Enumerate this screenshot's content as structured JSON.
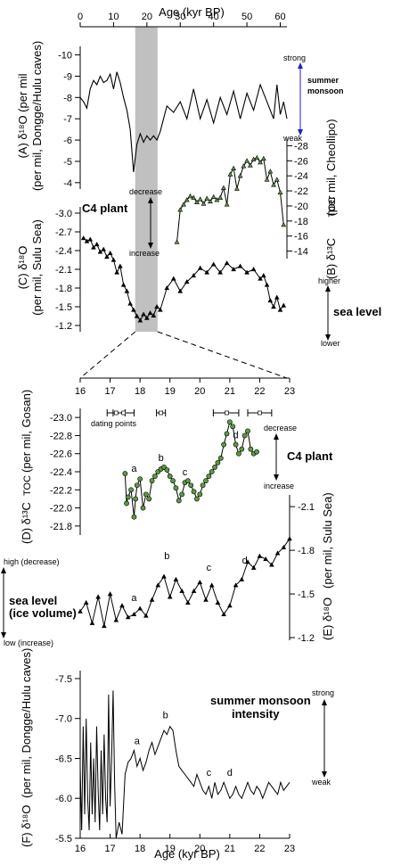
{
  "colors": {
    "red": "#e8333c",
    "blue": "#1f1fbf",
    "green": "#2e7d32",
    "shade": "#c0c0c0",
    "marker_green": "#5c9a42"
  },
  "chart_data": [
    {
      "id": "A",
      "type": "line",
      "xlabel": "Age (kyr BP)",
      "ylabel": "(A) δ18O (per mil, Dongge/Hulu caves)",
      "xlim": [
        0,
        62
      ],
      "xticks": [
        0,
        10,
        20,
        30,
        40,
        50,
        60
      ],
      "ylim": [
        -3.7,
        -10.4
      ],
      "yticks": [
        -10,
        -9,
        -8,
        -7,
        -6,
        -5,
        -4
      ],
      "series": [
        {
          "x": [
            0,
            1,
            2,
            3,
            4,
            5,
            6,
            7,
            8,
            9,
            10,
            11,
            12,
            13,
            14,
            15,
            16,
            17,
            18,
            19,
            20,
            21,
            22,
            23,
            24,
            26,
            28,
            30,
            32,
            34,
            36,
            38,
            40,
            42,
            44,
            46,
            48,
            50,
            52,
            54,
            56,
            58,
            59,
            60,
            61,
            62
          ],
          "y": [
            -8.0,
            -7.8,
            -7.5,
            -8.4,
            -8.8,
            -8.6,
            -9.0,
            -8.7,
            -8.8,
            -9.1,
            -8.4,
            -9.2,
            -8.7,
            -8.0,
            -7.4,
            -6.5,
            -4.5,
            -5.8,
            -6.3,
            -5.9,
            -6.2,
            -6.0,
            -6.2,
            -6.0,
            -6.4,
            -7.6,
            -7.3,
            -7.8,
            -7.0,
            -8.4,
            -7.0,
            -7.9,
            -6.8,
            -8.0,
            -7.2,
            -8.3,
            -7.0,
            -8.2,
            -7.4,
            -8.6,
            -7.8,
            -7.0,
            -8.6,
            -7.2,
            -7.8,
            -7.0
          ]
        }
      ],
      "annotations": {
        "top": "strong",
        "bottom": "weak",
        "label": [
          "summer",
          "monsoon"
        ]
      }
    },
    {
      "id": "B",
      "type": "line",
      "ylabel": "(B) δ13C TOC (per mil, Cheollipo)",
      "ylim": [
        -13,
        -29
      ],
      "yticks": [
        -28,
        -26,
        -24,
        -22,
        -20,
        -18,
        -16,
        -14
      ],
      "series": [
        {
          "x": [
            29,
            30,
            31,
            32,
            33,
            34,
            35,
            36,
            37,
            38,
            39,
            40,
            41,
            42,
            43,
            44,
            45,
            46,
            47,
            48,
            49,
            50,
            51,
            52,
            53,
            54,
            55,
            56,
            57,
            58,
            59,
            60,
            61
          ],
          "y": [
            -15.2,
            -19.5,
            -20.2,
            -20.8,
            -21.3,
            -21.1,
            -20.5,
            -20.9,
            -20.3,
            -21.0,
            -20.6,
            -21.2,
            -20.8,
            -21.1,
            -22.4,
            -20.2,
            -24.2,
            -25.0,
            -22.3,
            -24.0,
            -25.3,
            -26.0,
            -25.4,
            -26.2,
            -26.4,
            -25.8,
            -26.3,
            -23.5,
            -24.6,
            -22.8,
            -23.5,
            -21.8,
            -17.5
          ]
        }
      ],
      "annotations": {
        "top": "decrease",
        "bottom": "increase",
        "label": "C4 plant"
      }
    },
    {
      "id": "C",
      "type": "line",
      "ylabel": "(C) δ18O (per mil, Sulu Sea)",
      "ylim": [
        -1.1,
        -3.1
      ],
      "yticks": [
        -3.0,
        -2.7,
        -2.4,
        -2.1,
        -1.8,
        -1.5,
        -1.2
      ],
      "series": [
        {
          "x": [
            1,
            2,
            3,
            4,
            5,
            6,
            7,
            8,
            9,
            10,
            11,
            12,
            13,
            14,
            15,
            16,
            17,
            18,
            19,
            20,
            21,
            22,
            23,
            24,
            26,
            28,
            30,
            32,
            34,
            36,
            38,
            40,
            42,
            44,
            46,
            48,
            50,
            52,
            54,
            55,
            56,
            57,
            58,
            59,
            60,
            61
          ],
          "y": [
            -2.6,
            -2.55,
            -2.58,
            -2.45,
            -2.5,
            -2.38,
            -2.42,
            -2.3,
            -2.36,
            -2.25,
            -2.05,
            -2.15,
            -1.85,
            -1.75,
            -1.55,
            -1.45,
            -1.35,
            -1.28,
            -1.38,
            -1.32,
            -1.4,
            -1.36,
            -1.5,
            -1.45,
            -1.8,
            -1.95,
            -1.75,
            -1.9,
            -2.0,
            -2.12,
            -2.05,
            -2.18,
            -2.05,
            -2.2,
            -2.1,
            -2.15,
            -2.05,
            -2.1,
            -1.95,
            -2.0,
            -1.85,
            -1.6,
            -1.5,
            -1.65,
            -1.45,
            -1.52
          ]
        }
      ],
      "annotations": {
        "top": "higher",
        "bottom": "lower",
        "label": "sea level"
      }
    },
    {
      "id": "D",
      "type": "line",
      "xlim": [
        16,
        23
      ],
      "xticks": [
        16,
        17,
        18,
        19,
        20,
        21,
        22,
        23
      ],
      "ylabel": "(D) δ13C TOC (per mil, Gosan)",
      "ylim": [
        -21.7,
        -23.1
      ],
      "yticks": [
        -23.0,
        -22.8,
        -22.6,
        -22.4,
        -22.2,
        -22.0,
        -21.8
      ],
      "series": [
        {
          "x": [
            17.5,
            17.55,
            17.6,
            17.7,
            17.8,
            17.85,
            17.9,
            18.0,
            18.1,
            18.2,
            18.3,
            18.4,
            18.5,
            18.6,
            18.7,
            18.8,
            18.9,
            19.0,
            19.1,
            19.2,
            19.3,
            19.4,
            19.5,
            19.6,
            19.7,
            19.8,
            19.9,
            20.0,
            20.1,
            20.2,
            20.3,
            20.4,
            20.5,
            20.6,
            20.7,
            20.8,
            20.9,
            21.0,
            21.1,
            21.2,
            21.3,
            21.4,
            21.5,
            21.6,
            21.7,
            21.8,
            21.9
          ],
          "y": [
            -22.38,
            -22.05,
            -22.12,
            -22.2,
            -21.9,
            -22.1,
            -22.25,
            -22.32,
            -22.0,
            -22.15,
            -22.1,
            -22.3,
            -22.35,
            -22.4,
            -22.43,
            -22.45,
            -22.42,
            -22.35,
            -22.3,
            -22.22,
            -22.08,
            -22.15,
            -22.28,
            -22.3,
            -22.25,
            -22.18,
            -22.1,
            -22.15,
            -22.25,
            -22.3,
            -22.35,
            -22.4,
            -22.45,
            -22.5,
            -22.55,
            -22.7,
            -22.82,
            -22.95,
            -22.9,
            -22.7,
            -22.6,
            -22.65,
            -22.8,
            -22.85,
            -22.65,
            -22.6,
            -22.62
          ]
        }
      ],
      "letters": [
        {
          "t": "a",
          "x": 17.8,
          "y": -22.4
        },
        {
          "t": "b",
          "x": 18.7,
          "y": -22.52
        },
        {
          "t": "c",
          "x": 19.5,
          "y": -22.36
        },
        {
          "t": "d",
          "x": 21.2,
          "y": -22.77
        }
      ],
      "dating_points": [
        {
          "x": 17.2,
          "lo": 16.9,
          "hi": 17.5
        },
        {
          "x": 17.45,
          "lo": 17.1,
          "hi": 17.8
        },
        {
          "x": 18.7,
          "lo": 18.55,
          "hi": 18.85
        },
        {
          "x": 20.9,
          "lo": 20.45,
          "hi": 21.3
        },
        {
          "x": 22.0,
          "lo": 21.6,
          "hi": 22.4
        }
      ],
      "dating_label": "dating points",
      "annotations": {
        "top": "decrease",
        "bottom": "increase",
        "label": "C4 plant"
      }
    },
    {
      "id": "E",
      "type": "line",
      "ylabel": "(E) δ18O (per mil, Sulu Sea)",
      "ylim": [
        -1.2,
        -2.15
      ],
      "yticks": [
        -2.1,
        -1.8,
        -1.5,
        -1.2
      ],
      "series": [
        {
          "x": [
            16.0,
            16.2,
            16.4,
            16.6,
            16.8,
            17.0,
            17.2,
            17.4,
            17.6,
            17.8,
            18.0,
            18.2,
            18.4,
            18.6,
            18.8,
            19.0,
            19.2,
            19.4,
            19.6,
            19.8,
            20.0,
            20.2,
            20.4,
            20.6,
            20.8,
            21.0,
            21.2,
            21.4,
            21.6,
            21.8,
            22.0,
            22.2,
            22.4,
            22.6,
            22.8,
            23.0
          ],
          "y": [
            -1.38,
            -1.44,
            -1.3,
            -1.48,
            -1.28,
            -1.5,
            -1.32,
            -1.42,
            -1.34,
            -1.36,
            -1.4,
            -1.35,
            -1.46,
            -1.56,
            -1.62,
            -1.48,
            -1.6,
            -1.52,
            -1.44,
            -1.52,
            -1.58,
            -1.46,
            -1.56,
            -1.44,
            -1.36,
            -1.42,
            -1.56,
            -1.6,
            -1.72,
            -1.68,
            -1.76,
            -1.74,
            -1.7,
            -1.78,
            -1.82,
            -1.88
          ]
        }
      ],
      "letters": [
        {
          "t": "a",
          "x": 17.8,
          "y": -1.45
        },
        {
          "t": "b",
          "x": 18.9,
          "y": -1.74
        },
        {
          "t": "c",
          "x": 20.3,
          "y": -1.66
        },
        {
          "t": "d",
          "x": 21.5,
          "y": -1.71
        }
      ],
      "annotations": {
        "top": "high (decrease)",
        "bottom": "low (increase)",
        "label": [
          "sea level",
          "(ice volume)"
        ]
      }
    },
    {
      "id": "F",
      "type": "line",
      "xlabel": "Age (kyr BP)",
      "ylabel": "(F) δ18O (per mil, Dongge/Hulu caves)",
      "ylim": [
        -5.5,
        -7.6
      ],
      "yticks": [
        -7.5,
        -7.0,
        -6.5,
        -6.0,
        -5.5
      ],
      "series": [
        {
          "x": [
            16.0,
            16.05,
            16.1,
            16.15,
            16.2,
            16.25,
            16.3,
            16.35,
            16.4,
            16.45,
            16.5,
            16.55,
            16.6,
            16.65,
            16.7,
            16.75,
            16.8,
            16.85,
            16.9,
            16.95,
            17.0,
            17.05,
            17.1,
            17.15,
            17.2,
            17.3,
            17.4,
            17.5,
            17.6,
            17.7,
            17.8,
            17.9,
            18.0,
            18.1,
            18.2,
            18.3,
            18.4,
            18.5,
            18.6,
            18.7,
            18.8,
            18.9,
            19.0,
            19.1,
            19.2,
            19.3,
            19.4,
            19.5,
            19.6,
            19.7,
            19.8,
            19.9,
            20.0,
            20.1,
            20.2,
            20.3,
            20.4,
            20.5,
            20.6,
            20.7,
            20.8,
            20.9,
            21.0,
            21.1,
            21.2,
            21.3,
            21.4,
            21.5,
            21.6,
            21.7,
            21.8,
            21.9,
            22.0,
            22.1,
            22.2,
            22.3,
            22.4,
            22.5,
            22.6,
            22.7,
            22.8,
            22.9,
            23.0
          ],
          "y": [
            -6.4,
            -5.6,
            -6.9,
            -5.8,
            -7.0,
            -6.0,
            -5.6,
            -6.7,
            -5.8,
            -6.5,
            -5.7,
            -6.9,
            -6.1,
            -5.6,
            -6.6,
            -5.8,
            -6.8,
            -6.0,
            -5.7,
            -7.3,
            -5.9,
            -6.5,
            -7.35,
            -6.2,
            -5.5,
            -5.7,
            -5.55,
            -6.3,
            -6.45,
            -6.5,
            -6.6,
            -6.4,
            -6.5,
            -6.35,
            -6.45,
            -6.6,
            -6.7,
            -6.55,
            -6.65,
            -6.75,
            -6.85,
            -6.8,
            -6.9,
            -6.85,
            -6.6,
            -6.4,
            -6.35,
            -6.3,
            -6.25,
            -6.2,
            -6.15,
            -6.3,
            -6.2,
            -6.1,
            -6.05,
            -6.15,
            -6.0,
            -6.2,
            -6.05,
            -6.1,
            -6.2,
            -6.1,
            -6.0,
            -6.05,
            -6.15,
            -6.05,
            -6.0,
            -6.1,
            -6.2,
            -6.1,
            -6.05,
            -6.15,
            -6.1,
            -6.0,
            -6.1,
            -6.2,
            -6.15,
            -6.1,
            -6.05,
            -6.2,
            -6.1,
            -6.15,
            -6.2
          ]
        }
      ],
      "letters": [
        {
          "t": "a",
          "x": 17.9,
          "y": -6.68
        },
        {
          "t": "b",
          "x": 18.85,
          "y": -7.0
        },
        {
          "t": "c",
          "x": 20.3,
          "y": -6.28
        },
        {
          "t": "d",
          "x": 21.0,
          "y": -6.28
        }
      ],
      "annotations": {
        "top": "strong",
        "bottom": "weak",
        "label": [
          "summer monsoon",
          "intensity"
        ]
      }
    }
  ],
  "shaded_interval": {
    "x": [
      16.5,
      23.2
    ]
  }
}
